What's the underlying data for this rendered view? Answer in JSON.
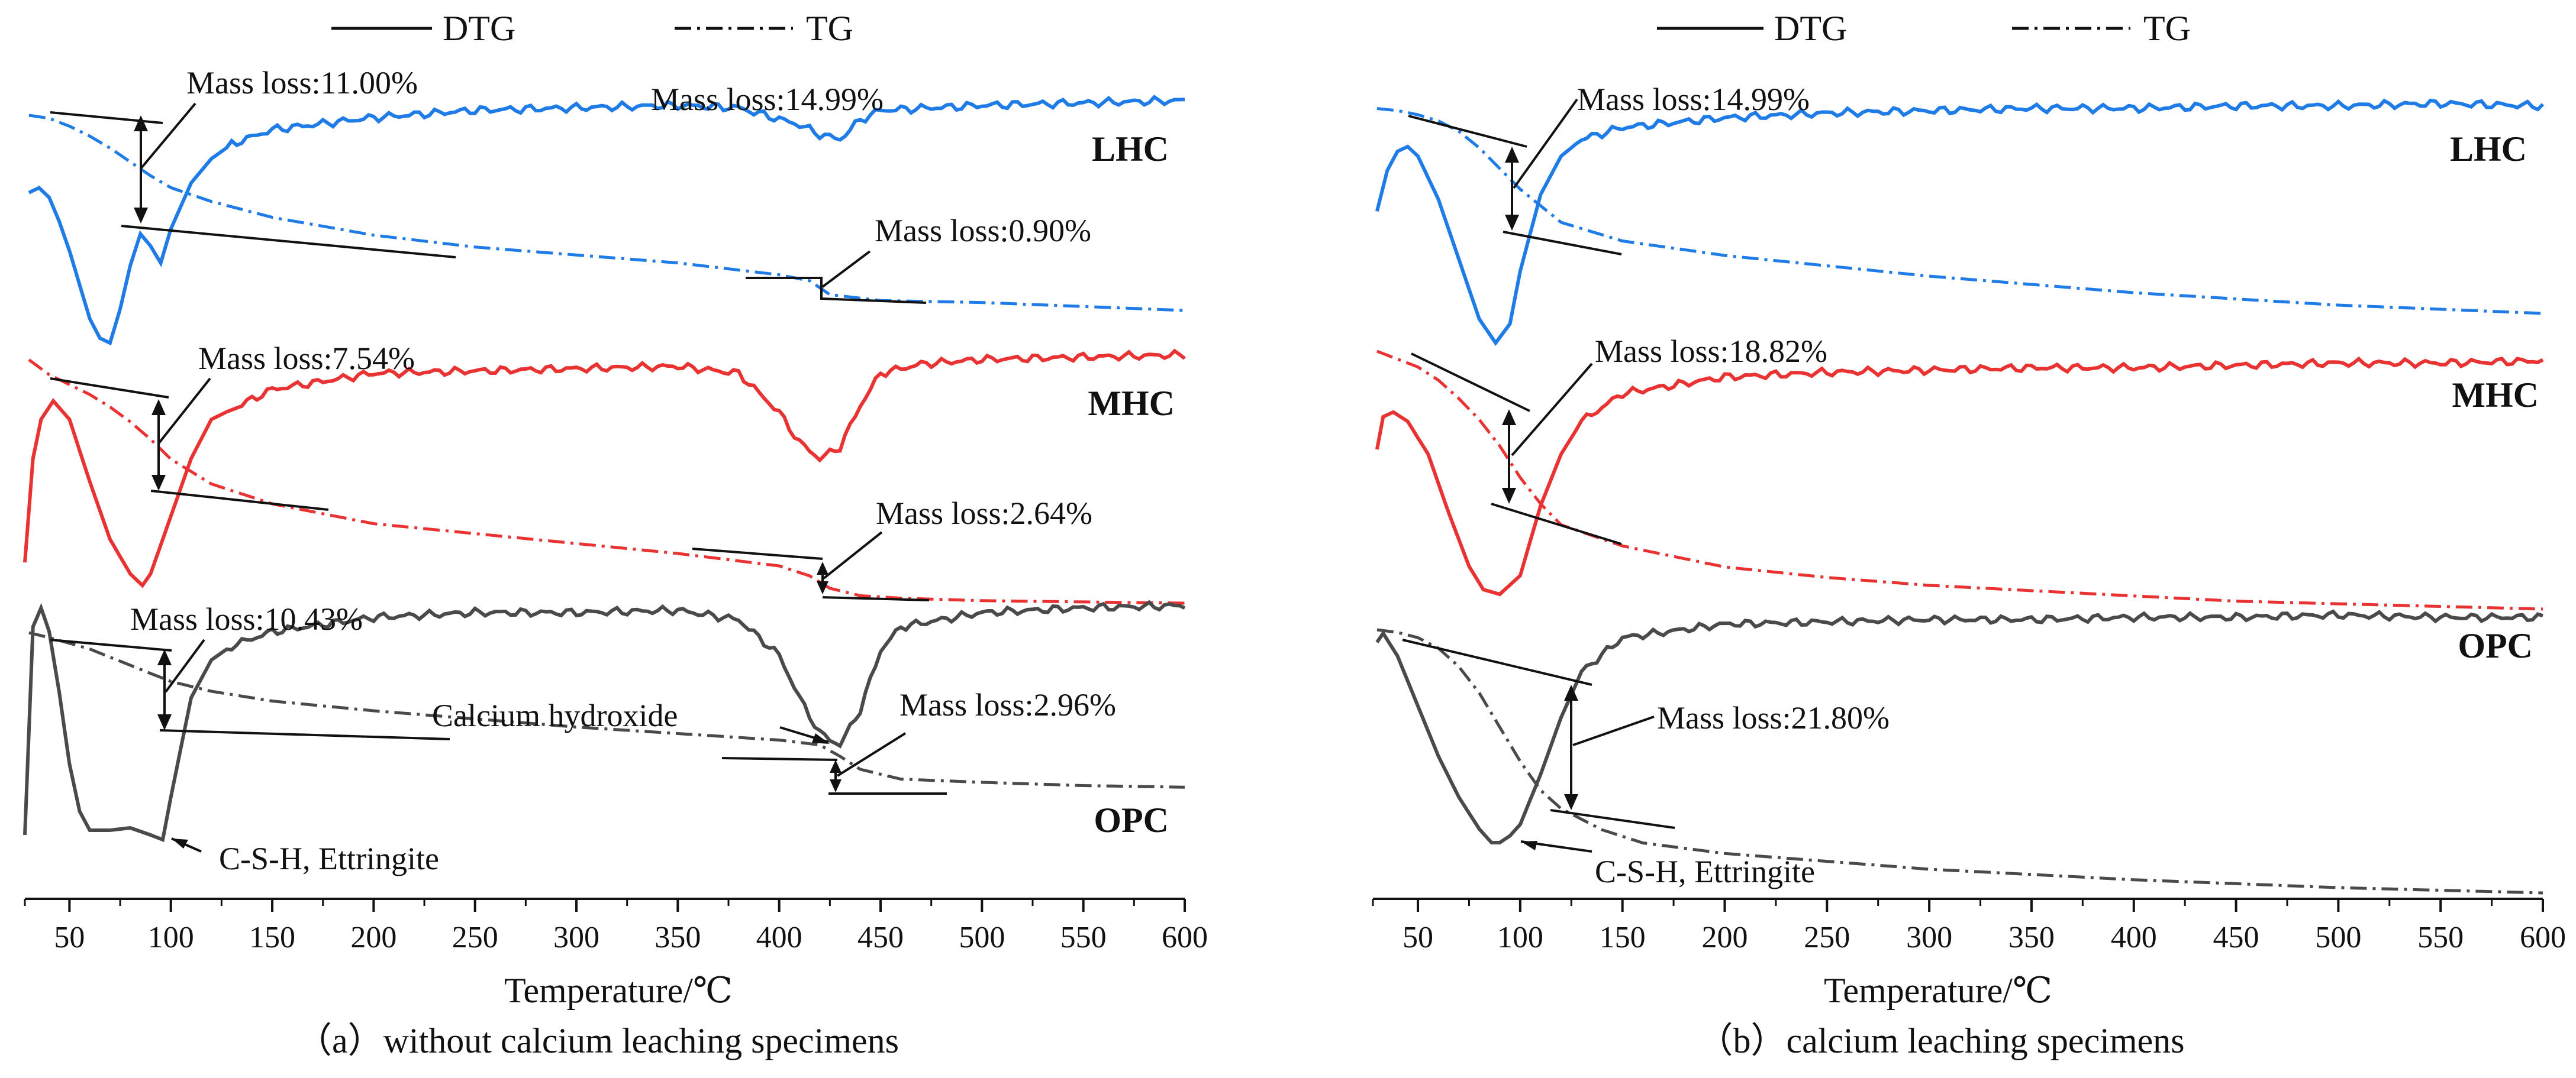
{
  "legend": {
    "dtg": "DTG",
    "tg": "TG"
  },
  "colors": {
    "LHC": "#1f7be6",
    "MHC": "#e93232",
    "OPC": "#4a4a4a",
    "ink": "#111111"
  },
  "chart_data": [
    {
      "type": "line",
      "id": "a",
      "caption": "（a）without calcium leaching specimens",
      "xlabel": "Temperature/℃",
      "xlim": [
        28,
        600
      ],
      "xticks": [
        50,
        100,
        150,
        200,
        250,
        300,
        350,
        400,
        450,
        500,
        550,
        600
      ],
      "tick_labels": [
        "50",
        "100",
        "150",
        "200",
        "250",
        "300",
        "350",
        "400",
        "450",
        "500",
        "550",
        "600"
      ],
      "legend": [
        "DTG",
        "TG"
      ],
      "series": [
        {
          "name": "LHC",
          "label": "LHC",
          "tg": {
            "x": [
              30,
              40,
              50,
              60,
              70,
              80,
              90,
              100,
              120,
              150,
              200,
              250,
              300,
              350,
              400,
              415,
              425,
              450,
              500,
              550,
              600
            ],
            "y": [
              0.985,
              0.97,
              0.93,
              0.88,
              0.82,
              0.75,
              0.68,
              0.62,
              0.55,
              0.47,
              0.38,
              0.32,
              0.28,
              0.24,
              0.18,
              0.15,
              0.08,
              0.05,
              0.04,
              0.02,
              0.0
            ]
          },
          "dtg": {
            "x": [
              30,
              35,
              40,
              45,
              50,
              55,
              60,
              65,
              70,
              75,
              80,
              85,
              90,
              95,
              100,
              110,
              120,
              130,
              150,
              170,
              200,
              250,
              300,
              350,
              380,
              410,
              420,
              430,
              440,
              450,
              500,
              550,
              600
            ],
            "y": [
              0.62,
              0.64,
              0.6,
              0.5,
              0.38,
              0.24,
              0.1,
              0.02,
              0.0,
              0.14,
              0.32,
              0.45,
              0.4,
              0.33,
              0.47,
              0.66,
              0.76,
              0.82,
              0.88,
              0.9,
              0.93,
              0.96,
              0.97,
              0.98,
              0.97,
              0.9,
              0.86,
              0.84,
              0.92,
              0.96,
              0.98,
              0.99,
              1.0
            ]
          },
          "annotations": [
            {
              "text": "Mass loss:11.00%",
              "x": 90
            },
            {
              "text": "Mass loss:14.99%",
              "x": 390
            },
            {
              "text": "Mass loss:0.90%",
              "x": 430
            }
          ]
        },
        {
          "name": "MHC",
          "label": "MHC",
          "tg": {
            "x": [
              30,
              40,
              50,
              60,
              70,
              80,
              90,
              100,
              120,
              150,
              200,
              250,
              300,
              350,
              400,
              415,
              425,
              440,
              460,
              500,
              550,
              600
            ],
            "y": [
              0.98,
              0.92,
              0.88,
              0.84,
              0.79,
              0.73,
              0.66,
              0.58,
              0.48,
              0.4,
              0.32,
              0.28,
              0.24,
              0.2,
              0.15,
              0.11,
              0.06,
              0.03,
              0.02,
              0.01,
              0.005,
              0.0
            ]
          },
          "dtg": {
            "x": [
              28,
              32,
              36,
              42,
              50,
              60,
              70,
              80,
              86,
              90,
              100,
              110,
              120,
              150,
              200,
              250,
              300,
              350,
              380,
              400,
              410,
              420,
              430,
              440,
              450,
              470,
              500,
              550,
              600
            ],
            "y": [
              0.1,
              0.55,
              0.72,
              0.8,
              0.72,
              0.45,
              0.2,
              0.05,
              0.0,
              0.05,
              0.3,
              0.55,
              0.72,
              0.85,
              0.92,
              0.93,
              0.94,
              0.95,
              0.92,
              0.75,
              0.62,
              0.55,
              0.6,
              0.78,
              0.92,
              0.96,
              0.98,
              0.99,
              1.0
            ]
          },
          "annotations": [
            {
              "text": "Mass loss:7.54%",
              "x": 95
            },
            {
              "text": "Mass loss:2.64%",
              "x": 425
            }
          ]
        },
        {
          "name": "OPC",
          "label": "OPC",
          "tg": {
            "x": [
              30,
              40,
              60,
              80,
              100,
              120,
              150,
              200,
              250,
              300,
              350,
              400,
              420,
              430,
              440,
              460,
              500,
              550,
              600
            ],
            "y": [
              1.0,
              0.97,
              0.9,
              0.8,
              0.7,
              0.64,
              0.58,
              0.52,
              0.47,
              0.42,
              0.38,
              0.34,
              0.31,
              0.24,
              0.16,
              0.1,
              0.08,
              0.06,
              0.05
            ]
          },
          "dtg": {
            "x": [
              28,
              32,
              36,
              40,
              45,
              50,
              55,
              60,
              70,
              80,
              90,
              96,
              100,
              110,
              120,
              130,
              150,
              200,
              250,
              300,
              350,
              380,
              400,
              410,
              420,
              430,
              440,
              450,
              460,
              500,
              550,
              600
            ],
            "y": [
              0.02,
              0.9,
              0.98,
              0.88,
              0.62,
              0.32,
              0.12,
              0.04,
              0.04,
              0.05,
              0.02,
              0.0,
              0.18,
              0.6,
              0.76,
              0.82,
              0.88,
              0.94,
              0.96,
              0.96,
              0.97,
              0.93,
              0.78,
              0.6,
              0.45,
              0.4,
              0.55,
              0.8,
              0.9,
              0.96,
              0.98,
              0.99
            ]
          },
          "annotations": [
            {
              "text": "Mass loss:10.43%",
              "x": 95
            },
            {
              "text": "Calcium hydroxide",
              "x": 430
            },
            {
              "text": "Mass loss:2.96%",
              "x": 425
            },
            {
              "text": "C-S-H, Ettringite",
              "x": 96
            }
          ]
        }
      ]
    },
    {
      "type": "line",
      "id": "b",
      "caption": "（b）calcium leaching specimens",
      "xlabel": "Temperature/℃",
      "xlim": [
        28,
        600
      ],
      "xticks": [
        50,
        100,
        150,
        200,
        250,
        300,
        350,
        400,
        450,
        500,
        550,
        600
      ],
      "tick_labels": [
        "50",
        "100",
        "150",
        "200",
        "250",
        "300",
        "350",
        "400",
        "450",
        "500",
        "550",
        "600"
      ],
      "legend": [
        "DTG",
        "TG"
      ],
      "series": [
        {
          "name": "LHC",
          "label": "LHC",
          "tg": {
            "x": [
              30,
              40,
              50,
              60,
              70,
              80,
              90,
              100,
              110,
              120,
              150,
              200,
              250,
              300,
              350,
              400,
              450,
              500,
              550,
              600
            ],
            "y": [
              0.99,
              0.98,
              0.96,
              0.93,
              0.88,
              0.8,
              0.7,
              0.6,
              0.52,
              0.44,
              0.35,
              0.28,
              0.23,
              0.18,
              0.14,
              0.1,
              0.07,
              0.04,
              0.02,
              0.0
            ]
          },
          "dtg": {
            "x": [
              30,
              35,
              40,
              45,
              50,
              60,
              70,
              80,
              88,
              95,
              100,
              110,
              120,
              130,
              150,
              200,
              250,
              300,
              350,
              400,
              450,
              500,
              550,
              600
            ],
            "y": [
              0.55,
              0.72,
              0.8,
              0.82,
              0.78,
              0.6,
              0.35,
              0.1,
              0.0,
              0.08,
              0.3,
              0.62,
              0.78,
              0.85,
              0.9,
              0.94,
              0.96,
              0.97,
              0.98,
              0.98,
              0.99,
              0.99,
              1.0,
              0.99
            ]
          },
          "annotations": [
            {
              "text": "Mass loss:14.99%",
              "x": 100
            }
          ]
        },
        {
          "name": "MHC",
          "label": "MHC",
          "tg": {
            "x": [
              30,
              40,
              50,
              60,
              70,
              80,
              90,
              100,
              110,
              120,
              150,
              200,
              250,
              300,
              350,
              400,
              450,
              500,
              550,
              600
            ],
            "y": [
              0.98,
              0.95,
              0.92,
              0.87,
              0.8,
              0.72,
              0.62,
              0.5,
              0.4,
              0.32,
              0.24,
              0.16,
              0.12,
              0.09,
              0.07,
              0.05,
              0.03,
              0.02,
              0.01,
              0.0
            ]
          },
          "dtg": {
            "x": [
              30,
              33,
              38,
              45,
              55,
              65,
              75,
              82,
              90,
              100,
              110,
              120,
              130,
              150,
              200,
              250,
              300,
              350,
              400,
              450,
              500,
              550,
              600
            ],
            "y": [
              0.62,
              0.76,
              0.78,
              0.74,
              0.6,
              0.35,
              0.12,
              0.02,
              0.0,
              0.08,
              0.38,
              0.6,
              0.74,
              0.86,
              0.93,
              0.95,
              0.96,
              0.97,
              0.97,
              0.98,
              0.99,
              0.99,
              1.0
            ]
          },
          "annotations": [
            {
              "text": "Mass loss:18.82%",
              "x": 100
            }
          ]
        },
        {
          "name": "OPC",
          "label": "OPC",
          "tg": {
            "x": [
              30,
              40,
              50,
              60,
              70,
              80,
              90,
              100,
              110,
              120,
              140,
              160,
              200,
              250,
              300,
              350,
              400,
              450,
              500,
              550,
              600
            ],
            "y": [
              1.0,
              0.99,
              0.97,
              0.93,
              0.86,
              0.76,
              0.63,
              0.5,
              0.39,
              0.32,
              0.24,
              0.19,
              0.15,
              0.12,
              0.09,
              0.07,
              0.05,
              0.035,
              0.02,
              0.01,
              0.0
            ]
          },
          "dtg": {
            "x": [
              30,
              33,
              40,
              50,
              60,
              70,
              80,
              86,
              90,
              95,
              100,
              110,
              120,
              130,
              150,
              200,
              250,
              300,
              350,
              400,
              450,
              500,
              550,
              600
            ],
            "y": [
              0.88,
              0.92,
              0.82,
              0.6,
              0.38,
              0.2,
              0.06,
              0.0,
              0.0,
              0.03,
              0.08,
              0.3,
              0.55,
              0.75,
              0.9,
              0.96,
              0.97,
              0.98,
              0.98,
              0.99,
              0.99,
              1.0,
              0.99,
              0.99
            ]
          },
          "annotations": [
            {
              "text": "Mass loss:21.80%",
              "x": 120
            },
            {
              "text": "C-S-H, Ettringite",
              "x": 88
            }
          ]
        }
      ]
    }
  ]
}
